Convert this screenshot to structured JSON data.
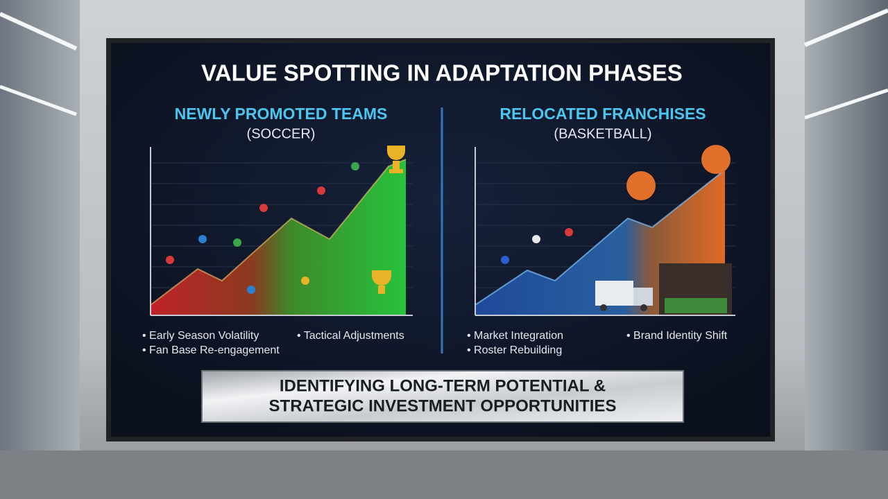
{
  "title": "VALUE SPOTTING IN ADAPTATION PHASES",
  "panels": [
    {
      "heading": "NEWLY PROMOTED TEAMS",
      "subheading": "(SOCCER)",
      "bullets": [
        "Early Season Volatility",
        "Tactical Adjustments",
        "Fan Base Re-engagement"
      ]
    },
    {
      "heading": "RELOCATED FRANCHISES",
      "subheading": "(BASKETBALL)",
      "bullets": [
        "Market Integration",
        "Brand Identity Shift",
        "Roster Rebuilding"
      ]
    }
  ],
  "banner": {
    "lines": [
      "IDENTIFYING LONG-TERM POTENTIAL &",
      "STRATEGIC INVESTMENT OPPORTUNITIES"
    ]
  }
}
